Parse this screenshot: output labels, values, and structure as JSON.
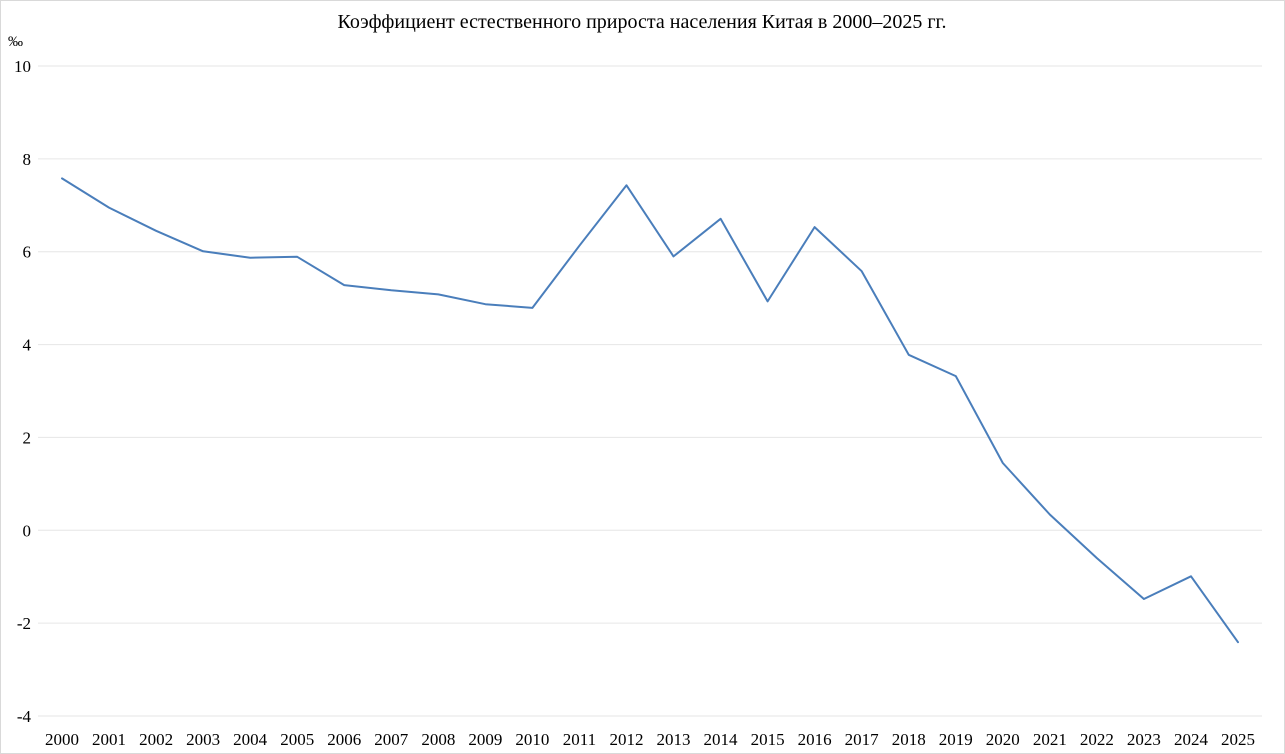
{
  "chart_data": {
    "type": "line",
    "title": "Коэффициент естественного прироста населения Китая в 2000–2025 гг.",
    "y_unit": "‰",
    "xlabel": "",
    "ylabel": "",
    "ylim": [
      -4,
      10
    ],
    "yticks": [
      "10",
      "8",
      "6",
      "4",
      "2",
      "0",
      "-2",
      "-4"
    ],
    "ytick_values": [
      10,
      8,
      6,
      4,
      2,
      0,
      -2,
      -4
    ],
    "grid": true,
    "legend": "none",
    "categories": [
      "2000",
      "2001",
      "2002",
      "2003",
      "2004",
      "2005",
      "2006",
      "2007",
      "2008",
      "2009",
      "2010",
      "2011",
      "2012",
      "2013",
      "2014",
      "2015",
      "2016",
      "2017",
      "2018",
      "2019",
      "2020",
      "2021",
      "2022",
      "2023",
      "2024",
      "2025"
    ],
    "series": [
      {
        "color": "#4a7ebb",
        "values": [
          7.58,
          6.95,
          6.45,
          6.01,
          5.87,
          5.89,
          5.28,
          5.17,
          5.08,
          4.87,
          4.79,
          6.13,
          7.43,
          5.9,
          6.71,
          4.93,
          6.53,
          5.58,
          3.78,
          3.32,
          1.45,
          0.34,
          -0.6,
          -1.48,
          -0.99,
          -2.41
        ]
      }
    ]
  }
}
